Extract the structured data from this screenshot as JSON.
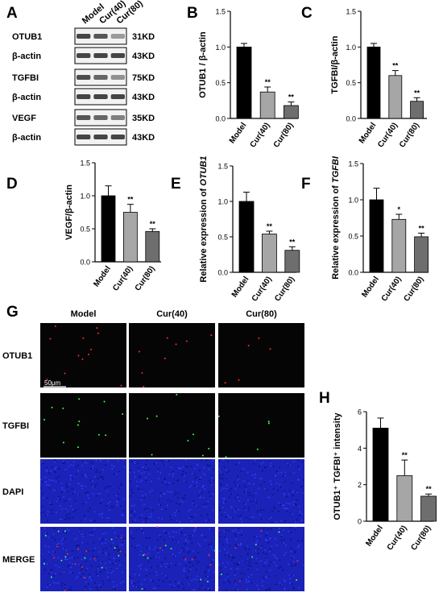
{
  "panel_letters": [
    "A",
    "B",
    "C",
    "D",
    "E",
    "F",
    "G",
    "H"
  ],
  "western_blot": {
    "lanes": [
      "Model",
      "Cur(40)",
      "Cur(80)"
    ],
    "rows": [
      {
        "label": "OTUB1",
        "size": "31KD",
        "intensity": [
          0.95,
          0.85,
          0.45
        ]
      },
      {
        "label": "β-actin",
        "size": "43KD",
        "intensity": [
          0.95,
          0.95,
          0.95
        ]
      },
      {
        "label": "TGFBI",
        "size": "75KD",
        "intensity": [
          0.9,
          0.75,
          0.5
        ]
      },
      {
        "label": "β-actin",
        "size": "43KD",
        "intensity": [
          0.95,
          0.95,
          0.95
        ]
      },
      {
        "label": "VEGF",
        "size": "35KD",
        "intensity": [
          0.85,
          0.75,
          0.6
        ]
      },
      {
        "label": "β-actin",
        "size": "43KD",
        "intensity": [
          0.95,
          0.95,
          0.95
        ]
      }
    ]
  },
  "if_images": {
    "columns": [
      "Model",
      "Cur(40)",
      "Cur(80)"
    ],
    "rows": [
      {
        "label": "OTUB1",
        "style": "red"
      },
      {
        "label": "TGFBI",
        "style": "green"
      },
      {
        "label": "DAPI",
        "style": "blue"
      },
      {
        "label": "MERGE",
        "style": "merge"
      }
    ],
    "scale_bar": "50μm"
  },
  "colors": {
    "model": "#000000",
    "cur40": "#a6a6a6",
    "cur80": "#6e6e6e"
  },
  "chart_data": [
    {
      "panel": "B",
      "type": "bar",
      "categories": [
        "Model",
        "Cur(40)",
        "Cur(80)"
      ],
      "values": [
        1.0,
        0.37,
        0.18
      ],
      "errors": [
        0.05,
        0.07,
        0.05
      ],
      "significance": [
        "",
        "**",
        "**"
      ],
      "ylabel": "OTUB1 / β-actin",
      "ylim": [
        0,
        1.5
      ],
      "yticks": [
        "0.0",
        "0.5",
        "1.0",
        "1.5"
      ]
    },
    {
      "panel": "C",
      "type": "bar",
      "categories": [
        "Model",
        "Cur(40)",
        "Cur(80)"
      ],
      "values": [
        1.0,
        0.6,
        0.24
      ],
      "errors": [
        0.05,
        0.07,
        0.05
      ],
      "significance": [
        "",
        "**",
        "**"
      ],
      "ylabel": "TGFBI/β-actin",
      "ylim": [
        0,
        1.5
      ],
      "yticks": [
        "0.0",
        "0.5",
        "1.0",
        "1.5"
      ]
    },
    {
      "panel": "D",
      "type": "bar",
      "categories": [
        "Model",
        "Cur(40)",
        "Cur(80)"
      ],
      "values": [
        1.0,
        0.75,
        0.46
      ],
      "errors": [
        0.15,
        0.12,
        0.04
      ],
      "significance": [
        "",
        "**",
        "**"
      ],
      "ylabel": "VEGF/β-actin",
      "ylim": [
        0,
        1.5
      ],
      "yticks": [
        "0.0",
        "0.5",
        "1.0",
        "1.5"
      ]
    },
    {
      "panel": "E",
      "type": "bar",
      "categories": [
        "Model",
        "Cur(40)",
        "Cur(80)"
      ],
      "values": [
        1.0,
        0.54,
        0.31
      ],
      "errors": [
        0.13,
        0.04,
        0.05
      ],
      "significance": [
        "",
        "**",
        "**"
      ],
      "ylabel": "Relative expression of",
      "ylabel_italic": "OTUB1",
      "ylim": [
        0,
        1.5
      ],
      "yticks": [
        "0.0",
        "0.5",
        "1.0",
        "1.5"
      ]
    },
    {
      "panel": "F",
      "type": "bar",
      "categories": [
        "Model",
        "Cur(40)",
        "Cur(80)"
      ],
      "values": [
        1.0,
        0.73,
        0.49
      ],
      "errors": [
        0.16,
        0.07,
        0.05
      ],
      "significance": [
        "",
        "*",
        "**"
      ],
      "ylabel": "Relative expression of",
      "ylabel_italic": "TGFBI",
      "ylim": [
        0,
        1.5
      ],
      "yticks": [
        "0.0",
        "0.5",
        "1.0",
        "1.5"
      ]
    },
    {
      "panel": "H",
      "type": "bar",
      "categories": [
        "Model",
        "Cur(40)",
        "Cur(80)"
      ],
      "values": [
        5.1,
        2.5,
        1.37
      ],
      "errors": [
        0.55,
        0.85,
        0.12
      ],
      "significance": [
        "",
        "**",
        "**"
      ],
      "ylabel": "OTUB1⁺ TGFBI⁺ intensity",
      "ylim": [
        0,
        6
      ],
      "yticks": [
        "0",
        "2",
        "4",
        "6"
      ]
    }
  ]
}
